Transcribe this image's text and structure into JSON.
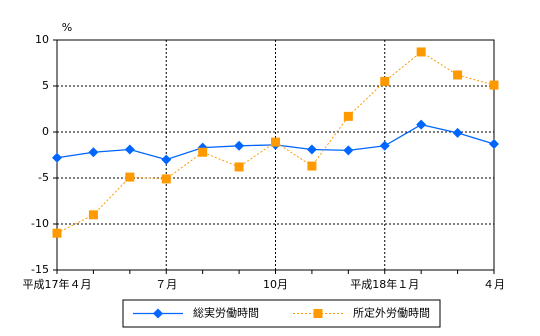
{
  "chart_data": {
    "type": "line",
    "y_label": "%",
    "categories": [
      "平成17年４月",
      null,
      null,
      "７月",
      null,
      null,
      "10月",
      null,
      null,
      "平成18年１月",
      null,
      null,
      "４月"
    ],
    "series": [
      {
        "name": "総実労働時間",
        "color": "#0066ff",
        "marker": "diamond",
        "dash": "solid",
        "values": [
          -2.8,
          -2.2,
          -1.9,
          -3.0,
          -1.7,
          -1.5,
          -1.4,
          -1.9,
          -2.0,
          -1.5,
          0.8,
          -0.1,
          -1.3
        ]
      },
      {
        "name": "所定外労働時間",
        "color": "#ff9900",
        "marker": "square",
        "dash": "dotted",
        "values": [
          -11.0,
          -9.0,
          -4.9,
          -5.1,
          -2.2,
          -3.8,
          -1.1,
          -3.7,
          1.7,
          5.5,
          8.7,
          6.2,
          5.1
        ]
      }
    ],
    "ylim": [
      -15,
      10
    ],
    "yticks": [
      -15,
      -10,
      -5,
      0,
      5,
      10
    ],
    "grid": true,
    "legend": "bottom"
  }
}
